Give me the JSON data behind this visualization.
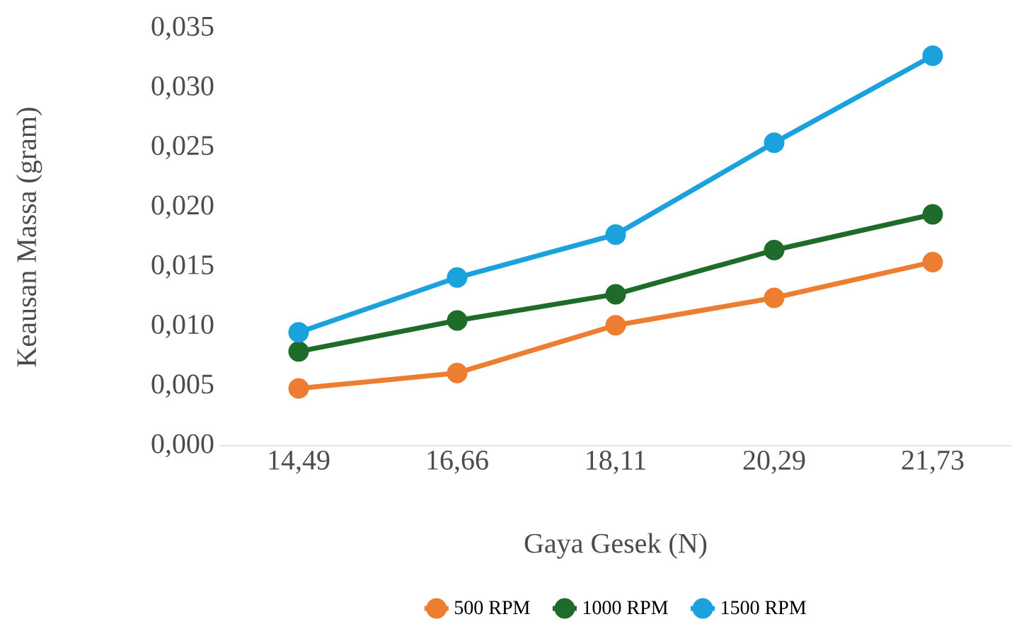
{
  "chart_data": {
    "type": "line",
    "xlabel": "Gaya Gesek (N)",
    "ylabel": "Keausan Massa (gram)",
    "categories": [
      "14,49",
      "16,66",
      "18,11",
      "20,29",
      "21,73"
    ],
    "series": [
      {
        "name": "500 RPM",
        "color": "#ed7d31",
        "values": [
          0.0048,
          0.0061,
          0.0101,
          0.0124,
          0.0154
        ]
      },
      {
        "name": "1000 RPM",
        "color": "#1e6b2a",
        "values": [
          0.0079,
          0.0105,
          0.0127,
          0.0164,
          0.0194
        ]
      },
      {
        "name": "1500 RPM",
        "color": "#1ba1dc",
        "values": [
          0.0095,
          0.0141,
          0.0177,
          0.0254,
          0.0327
        ]
      }
    ],
    "ylim": [
      0,
      0.035
    ],
    "yticks": [
      {
        "value": 0,
        "label": "0,000"
      },
      {
        "value": 0.005,
        "label": "0,005"
      },
      {
        "value": 0.01,
        "label": "0,010"
      },
      {
        "value": 0.015,
        "label": "0,015"
      },
      {
        "value": 0.02,
        "label": "0,020"
      },
      {
        "value": 0.025,
        "label": "0,025"
      },
      {
        "value": 0.03,
        "label": "0,030"
      },
      {
        "value": 0.035,
        "label": "0,035"
      }
    ],
    "marker": "circle",
    "legend": "bottom",
    "grid": false
  }
}
